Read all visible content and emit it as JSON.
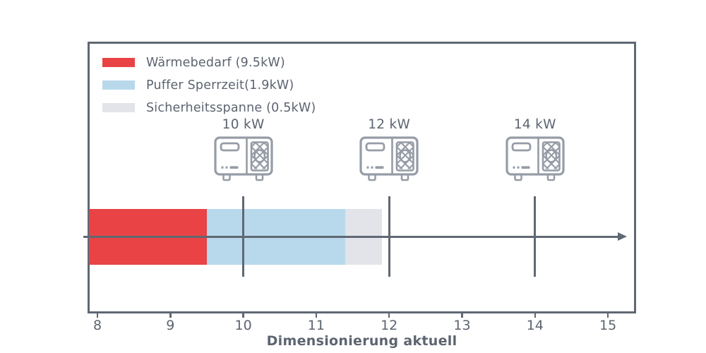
{
  "figure": {
    "background": "#ffffff",
    "axis_color": "#5f6873",
    "text_color": "#5c6470",
    "icon_color": "#969ca6"
  },
  "legend": {
    "items": [
      {
        "label": "Wärmebedarf (9.5kW)",
        "color": "#e94345"
      },
      {
        "label": "Puffer Sperrzeit(1.9kW)",
        "color": "#b8d9ec"
      },
      {
        "label": "Sicherheitsspanne (0.5kW)",
        "color": "#e2e4ea"
      }
    ]
  },
  "chart_data": {
    "type": "bar",
    "orientation": "horizontal-stacked",
    "title": "",
    "xlabel": "Dimensionierung aktuell",
    "ylabel": "",
    "x_ticks": [
      8,
      9,
      10,
      11,
      12,
      13,
      14,
      15
    ],
    "xlim": [
      7.86,
      15.38
    ],
    "grid": false,
    "legend_position": "upper-left-inside",
    "segments": [
      {
        "name": "Wärmebedarf",
        "value_kw": 9.5,
        "plot_start": 7.88,
        "plot_end": 9.5,
        "color": "#e94345"
      },
      {
        "name": "Puffer Sperrzeit",
        "value_kw": 1.9,
        "plot_start": 9.5,
        "plot_end": 11.4,
        "color": "#b8d9ec"
      },
      {
        "name": "Sicherheitsspanne",
        "value_kw": 0.5,
        "plot_start": 11.4,
        "plot_end": 11.9,
        "color": "#e2e4ea"
      }
    ],
    "markers": [
      {
        "label": "10 kW",
        "value": 10,
        "icon": "heat-pump-icon"
      },
      {
        "label": "12 kW",
        "value": 12,
        "icon": "heat-pump-icon"
      },
      {
        "label": "14 kW",
        "value": 14,
        "icon": "heat-pump-icon"
      }
    ],
    "axis_arrow": {
      "at_bar_center": true,
      "from": 7.82,
      "to": 15.25
    }
  }
}
